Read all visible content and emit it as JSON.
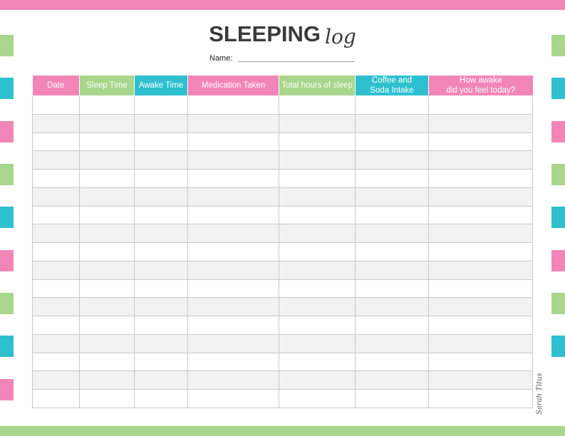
{
  "title": {
    "main": "SLEEPING",
    "script": "log"
  },
  "name_label": "Name:",
  "table": {
    "headers": [
      {
        "line1": "Date",
        "line2": "",
        "color": "#f285b8"
      },
      {
        "line1": "Sleep Time",
        "line2": "",
        "color": "#a8d68c"
      },
      {
        "line1": "Awake Time",
        "line2": "",
        "color": "#2ec0cf"
      },
      {
        "line1": "Medication Taken",
        "line2": "",
        "color": "#f285b8"
      },
      {
        "line1": "Total hours of sleep",
        "line2": "",
        "color": "#a8d68c"
      },
      {
        "line1": "Coffee and",
        "line2": "Soda Intake",
        "color": "#2ec0cf"
      },
      {
        "line1": "How awake",
        "line2": "did you feel today?",
        "color": "#f285b8"
      }
    ],
    "row_count": 17
  },
  "watermark": "Sarah Titus",
  "colors": {
    "pink": "#f285b8",
    "green": "#a8d68c",
    "teal": "#2ec0cf",
    "alt_row": "#f2f2f2"
  }
}
